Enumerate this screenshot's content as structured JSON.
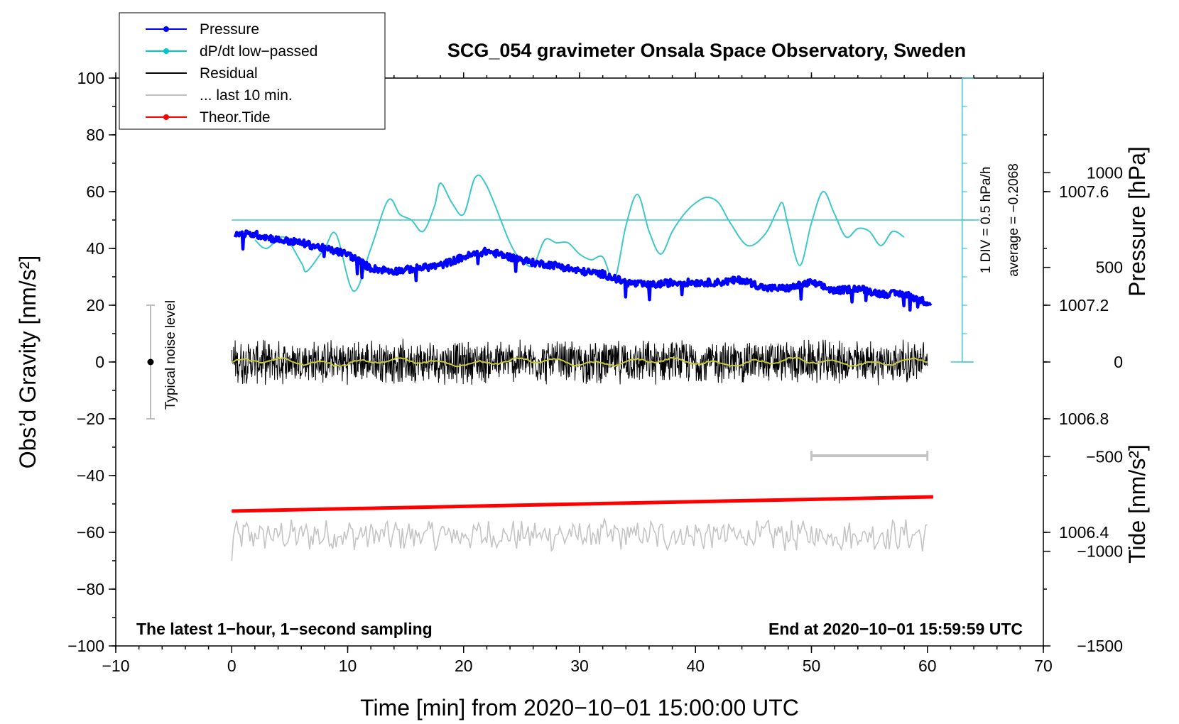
{
  "chart_data": {
    "type": "line",
    "title": "SCG_054 gravimeter Onsala Space Observatory, Sweden",
    "xlabel": "Time [min] from 2020−10−01 15:00:00 UTC",
    "ylabel": "Obs’d Gravity [nm/s²]",
    "ylabel_right_pressure": "Pressure [hPa]",
    "ylabel_right_tide": "Tide [nm/s²]",
    "xlim": [
      -10,
      70
    ],
    "ylim": [
      -100,
      100
    ],
    "pressure_lim": [
      1006.0,
      1008.0
    ],
    "tide_lim": [
      -1500,
      1500
    ],
    "x_ticks": [
      "−10",
      "0",
      "10",
      "20",
      "30",
      "40",
      "50",
      "60",
      "70"
    ],
    "y_ticks": [
      "−100",
      "−80",
      "−60",
      "−40",
      "−20",
      "0",
      "20",
      "40",
      "60",
      "80",
      "100"
    ],
    "pressure_ticks": [
      "1006.4",
      "1006.8",
      "1007.2",
      "1007.6"
    ],
    "tide_ticks": [
      "−1500",
      "−1000",
      "−500",
      "0",
      "500",
      "1000"
    ],
    "legend": [
      {
        "name": "Pressure",
        "color": "#0000ff",
        "marker": true
      },
      {
        "name": "dP/dt low−passed",
        "color": "#00c8c8",
        "marker": true
      },
      {
        "name": "Residual",
        "color": "#000000",
        "marker": false
      },
      {
        "name": "... last 10 min.",
        "color": "#c0c0c0",
        "marker": false
      },
      {
        "name": "Theor.Tide",
        "color": "#ff0000",
        "marker": true
      }
    ],
    "annotations": {
      "left_note": "The latest 1−hour, 1−second sampling",
      "right_note": "End at 2020−10−01 15:59:59 UTC",
      "noise_label": "Typical noise level",
      "div_label": "1 DIV = 0.5 hPa/h",
      "average_label": "average = −0.2068"
    },
    "pressure_series": {
      "name": "Pressure",
      "x": [
        0,
        2,
        4,
        6,
        8,
        10,
        12,
        14,
        16,
        18,
        20,
        22,
        24,
        26,
        28,
        30,
        32,
        34,
        36,
        38,
        40,
        42,
        44,
        46,
        48,
        50,
        52,
        54,
        56,
        58,
        60
      ],
      "y": [
        1007.45,
        1007.45,
        1007.43,
        1007.42,
        1007.4,
        1007.38,
        1007.33,
        1007.32,
        1007.33,
        1007.34,
        1007.37,
        1007.39,
        1007.37,
        1007.35,
        1007.34,
        1007.32,
        1007.31,
        1007.28,
        1007.27,
        1007.28,
        1007.28,
        1007.28,
        1007.29,
        1007.26,
        1007.26,
        1007.28,
        1007.25,
        1007.26,
        1007.24,
        1007.24,
        1007.21
      ]
    },
    "dpdt_series": {
      "name": "dP/dt low−passed",
      "reference_level": 50,
      "x": [
        2,
        3,
        4.5,
        6,
        6.5,
        8,
        9,
        10.5,
        12,
        13.5,
        14.5,
        15.5,
        16.5,
        17.5,
        18,
        19,
        20,
        21,
        22,
        24,
        25,
        26,
        27,
        28,
        29,
        30,
        31,
        32,
        33,
        34,
        35,
        36,
        37,
        38,
        39,
        40,
        41,
        42,
        43,
        44.5,
        46,
        47,
        47.5,
        48,
        49,
        50,
        51,
        52,
        53,
        54,
        55,
        56,
        57,
        58
      ],
      "y": [
        43,
        40,
        44,
        35,
        32,
        40,
        45,
        25,
        40,
        57,
        52,
        50,
        46,
        55,
        63,
        56,
        52,
        65,
        62,
        42,
        36,
        34,
        43,
        42,
        42,
        38,
        36,
        37,
        29,
        48,
        59,
        46,
        38,
        46,
        52,
        56,
        58,
        56,
        49,
        41,
        45,
        53,
        56,
        48,
        34,
        49,
        60,
        52,
        44,
        47,
        46,
        41,
        46,
        44
      ]
    },
    "residual_series": {
      "name": "Residual",
      "x_range": [
        0,
        60
      ],
      "amplitude": 7,
      "mean": 0
    },
    "last10_series": {
      "name": "... last 10 min.",
      "x_range": [
        0,
        60
      ],
      "center": -61,
      "amplitude": 4.5,
      "scale_bar_x": [
        50,
        60
      ],
      "scale_bar_y": -33
    },
    "tide_series": {
      "name": "Theor.Tide",
      "x": [
        0,
        60.5
      ],
      "y": [
        -52.5,
        -47.5
      ]
    },
    "noise_level": {
      "x": -7,
      "y_range": [
        -20,
        20
      ]
    }
  }
}
